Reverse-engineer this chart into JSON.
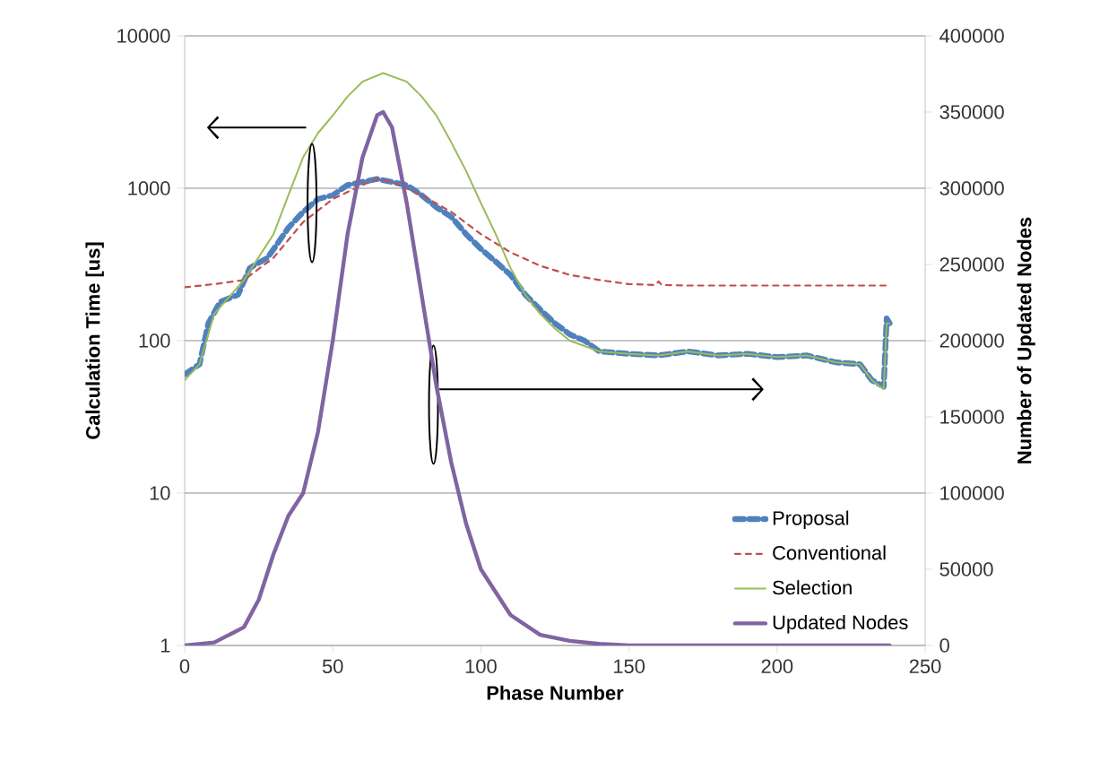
{
  "chart_data": {
    "type": "line",
    "xlabel": "Phase Number",
    "ylabel": "Calculation Time [us]",
    "y2label": "Number of Updated Nodes",
    "xlim": [
      0,
      250
    ],
    "xticks": [
      0,
      50,
      100,
      150,
      200,
      250
    ],
    "ylim": [
      1,
      10000
    ],
    "yticks": [
      1,
      10,
      100,
      1000,
      10000
    ],
    "log": "y",
    "y2lim": [
      0,
      400000
    ],
    "y2ticks": [
      0,
      50000,
      100000,
      150000,
      200000,
      250000,
      300000,
      350000,
      400000
    ],
    "grid": "y",
    "legend": "bottom right",
    "marker": "none",
    "series": [
      {
        "name": "Proposal",
        "color": "#4f81bd",
        "line_style": "dashed",
        "x": [
          0,
          5,
          8,
          12,
          18,
          22,
          28,
          35,
          40,
          45,
          50,
          55,
          60,
          65,
          70,
          75,
          80,
          85,
          90,
          95,
          100,
          105,
          110,
          115,
          120,
          125,
          130,
          135,
          140,
          150,
          160,
          170,
          180,
          190,
          200,
          210,
          220,
          228,
          232,
          236,
          237,
          238
        ],
        "values": [
          60,
          70,
          130,
          180,
          200,
          300,
          350,
          550,
          700,
          850,
          900,
          1050,
          1100,
          1150,
          1100,
          1050,
          900,
          750,
          650,
          500,
          400,
          330,
          270,
          200,
          160,
          130,
          110,
          100,
          85,
          82,
          80,
          85,
          80,
          82,
          78,
          80,
          72,
          70,
          55,
          50,
          140,
          130
        ]
      },
      {
        "name": "Conventional",
        "color": "#c0504d",
        "line_style": "dashed",
        "x": [
          0,
          10,
          20,
          30,
          40,
          50,
          60,
          65,
          70,
          80,
          90,
          100,
          110,
          120,
          130,
          140,
          150,
          159,
          160,
          161,
          170,
          200,
          238
        ],
        "values": [
          224,
          235,
          250,
          350,
          600,
          850,
          1050,
          1150,
          1100,
          900,
          700,
          500,
          380,
          310,
          270,
          250,
          235,
          232,
          245,
          232,
          230,
          230,
          230
        ]
      },
      {
        "name": "Selection",
        "color": "#9bbb59",
        "line_style": "solid",
        "x": [
          0,
          5,
          10,
          20,
          30,
          35,
          40,
          45,
          50,
          55,
          60,
          67,
          75,
          80,
          85,
          90,
          95,
          100,
          105,
          110,
          115,
          120,
          125,
          130,
          140,
          150,
          160,
          170,
          180,
          190,
          200,
          210,
          220,
          228,
          232,
          236,
          237,
          238
        ],
        "values": [
          55,
          70,
          150,
          250,
          500,
          900,
          1600,
          2300,
          3000,
          4000,
          5000,
          5700,
          5000,
          4000,
          3000,
          2000,
          1300,
          800,
          500,
          300,
          200,
          150,
          120,
          100,
          85,
          82,
          80,
          85,
          80,
          82,
          78,
          80,
          72,
          70,
          55,
          48,
          130,
          130
        ]
      },
      {
        "name": "Updated Nodes",
        "color": "#8064a2",
        "line_style": "solid",
        "axis": "y2",
        "x": [
          0,
          10,
          20,
          25,
          30,
          35,
          40,
          45,
          50,
          55,
          60,
          65,
          67,
          70,
          75,
          80,
          85,
          90,
          95,
          100,
          110,
          120,
          130,
          140,
          150,
          238
        ],
        "values": [
          0,
          2000,
          12000,
          30000,
          60000,
          85000,
          100000,
          140000,
          200000,
          270000,
          320000,
          348000,
          350000,
          340000,
          290000,
          230000,
          170000,
          120000,
          80000,
          50000,
          20000,
          7000,
          3000,
          1000,
          0,
          0
        ]
      }
    ]
  }
}
